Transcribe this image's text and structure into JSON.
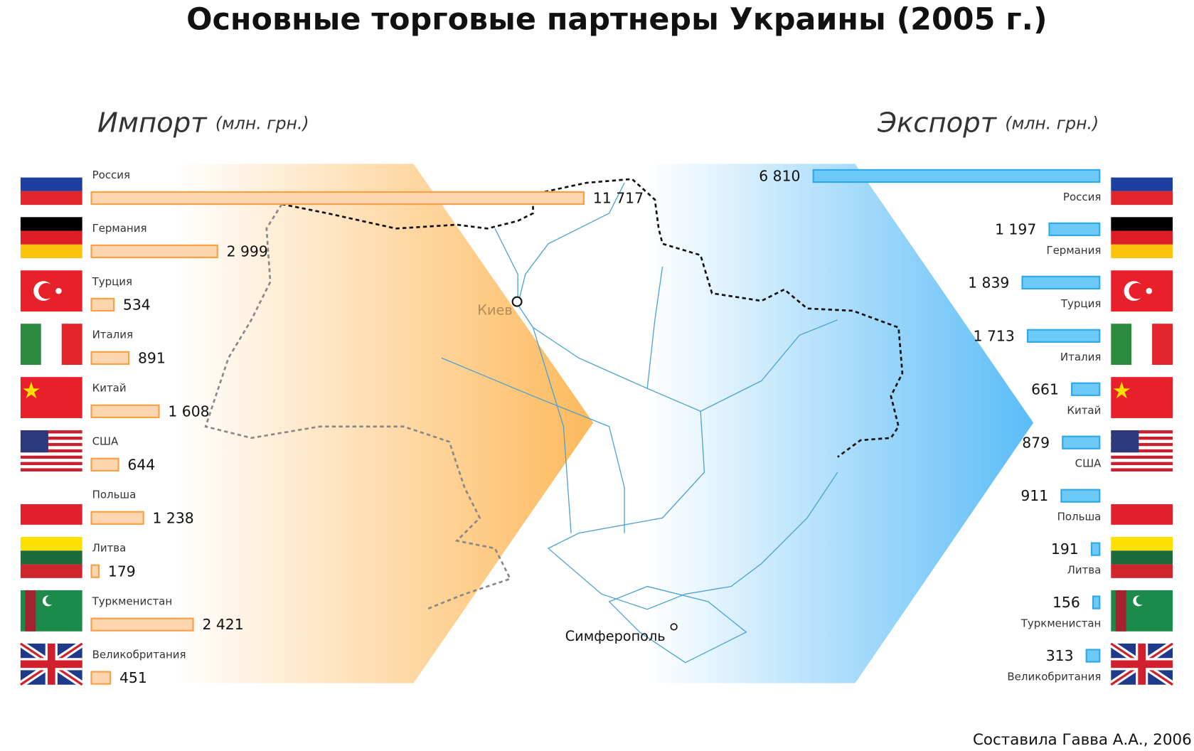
{
  "title": "Основные торговые партнеры Украины (2005 г.)",
  "credit": "Составила Гавва А.А., 2006",
  "map_labels": [
    "Киев",
    "Симферополь"
  ],
  "chart_data": [
    {
      "type": "bar",
      "title": "Импорт",
      "unit": "(млн. грн.)",
      "color": "#fdd5ae",
      "stroke": "#f7a046",
      "categories": [
        "Россия",
        "Германия",
        "Турция",
        "Италия",
        "Китай",
        "США",
        "Польша",
        "Литва",
        "Туркменистан",
        "Великобритания"
      ],
      "values": [
        11717,
        2999,
        534,
        891,
        1608,
        644,
        1238,
        179,
        2421,
        451
      ],
      "value_labels": [
        "11 717",
        "2 999",
        "534",
        "891",
        "1 608",
        "644",
        "1 238",
        "179",
        "2 421",
        "451"
      ]
    },
    {
      "type": "bar",
      "title": "Экспорт",
      "unit": "(млн. грн.)",
      "color": "#6dcaf8",
      "stroke": "#2ea8e8",
      "categories": [
        "Россия",
        "Германия",
        "Турция",
        "Италия",
        "Китай",
        "США",
        "Польша",
        "Литва",
        "Туркменистан",
        "Великобритания"
      ],
      "values": [
        6810,
        1197,
        1839,
        1713,
        661,
        879,
        911,
        191,
        156,
        313
      ],
      "value_labels": [
        "6 810",
        "1 197",
        "1 839",
        "1 713",
        "661",
        "879",
        "911",
        "191",
        "156",
        "313"
      ]
    }
  ]
}
